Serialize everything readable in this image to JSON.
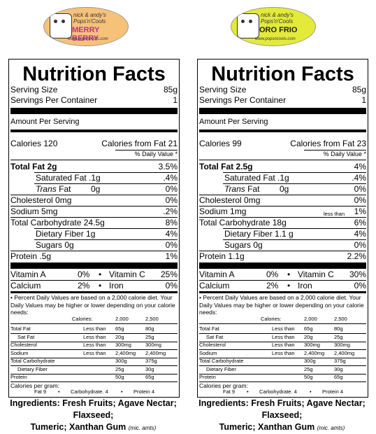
{
  "labels": [
    {
      "brand_line1": "nick & andy's",
      "brand_line2": "Pops'n'Cools",
      "flavor": "MERRY BERRY",
      "flavor_color": "#c03090",
      "logo_bg": "#f6c27a",
      "url": "www.popsncools.com",
      "title": "Nutrition Facts",
      "serving_size_label": "Serving Size",
      "serving_size_value": "85g",
      "servings_label": "Servings Per Container",
      "servings_value": "1",
      "amount_per_serving": "Amount Per Serving",
      "calories": "Calories 120",
      "calories_from_fat": "Calories from Fat 21",
      "dv_header": "% Daily Value *",
      "total_fat": "Total Fat 2g",
      "total_fat_dv": "3.5%",
      "sat_fat": "Saturated Fat .1g",
      "sat_fat_dv": ".4%",
      "trans_fat_label": "Trans",
      "trans_fat_rest": "Fat",
      "trans_fat_amt": "0g",
      "trans_fat_dv": "0%",
      "cholesterol": "Cholesterol 0mg",
      "cholesterol_dv": "0%",
      "sodium": "Sodium 5mg",
      "sodium_note": "",
      "sodium_dv": ".2%",
      "total_carb": "Total Carbohydrate 24.5g",
      "total_carb_dv": "8%",
      "fiber": "Dietary Fiber 1g",
      "fiber_dv": "4%",
      "sugars": "Sugars 0g",
      "sugars_dv": "0%",
      "protein": "Protein .5g",
      "protein_dv": "1%",
      "vit_a": "Vitamin A",
      "vit_a_dv": "0%",
      "vit_c": "Vitamin C",
      "vit_c_dv": "25%",
      "calcium": "Calcium",
      "calcium_dv": "2%",
      "iron": "Iron",
      "iron_dv": "0%"
    },
    {
      "brand_line1": "nick & andy's",
      "brand_line2": "Pops'n'Cools",
      "flavor": "ORO FRIO",
      "flavor_color": "#222222",
      "logo_bg": "#e3ea3a",
      "url": "www.popsncools.com",
      "title": "Nutrition Facts",
      "serving_size_label": "Serving Size",
      "serving_size_value": "85g",
      "servings_label": "Servings Per Container",
      "servings_value": "1",
      "amount_per_serving": "Amount Per Serving",
      "calories": "Calories 99",
      "calories_from_fat": "Calories from Fat 23",
      "dv_header": "% Daily Value *",
      "total_fat": "Total Fat 2.5g",
      "total_fat_dv": "4%",
      "sat_fat": "Saturated Fat .1g",
      "sat_fat_dv": ".4%",
      "trans_fat_label": "Trans",
      "trans_fat_rest": "Fat",
      "trans_fat_amt": "0g",
      "trans_fat_dv": "0%",
      "cholesterol": "Cholesterol 0mg",
      "cholesterol_dv": "0%",
      "sodium": "Sodium 1mg",
      "sodium_note": "less than",
      "sodium_dv": "1%",
      "total_carb": "Total Carbohydrate 18g",
      "total_carb_dv": "6%",
      "fiber": "Dietary Fiber 1.1 g",
      "fiber_dv": "4%",
      "sugars": "Sugars 0g",
      "sugars_dv": "0%",
      "protein": "Protein 1.1g",
      "protein_dv": "2.2%",
      "vit_a": "Vitamin A",
      "vit_a_dv": "0%",
      "vit_c": "Vitamin C",
      "vit_c_dv": "30%",
      "calcium": "Calcium",
      "calcium_dv": "2%",
      "iron": "Iron",
      "iron_dv": "0%"
    }
  ],
  "footnote": "• Percent Daily Values are based on a 2,000 calorie diet.  Your Daily Values may be higher or lower depending on your calorie needs:",
  "dv_table": {
    "header": [
      "Calories:",
      "2,000",
      "2,500"
    ],
    "rows": [
      [
        "Total Fat",
        "Less than",
        "65g",
        "80g"
      ],
      [
        "Sat Fat",
        "Less than",
        "20g",
        "25g"
      ],
      [
        "Cholesterol",
        "Less than",
        "300mg",
        "300mg"
      ],
      [
        "Sodium",
        "Less than",
        "2,400mg",
        "2,400mg"
      ],
      [
        "Total Carbohydrate",
        "",
        "300g",
        "375g"
      ],
      [
        "Dietary Fiber",
        "",
        "25g",
        "30g"
      ],
      [
        "Protein",
        "",
        "50g",
        "65g"
      ]
    ]
  },
  "calories_per_gram_label": "Calories per gram:",
  "calories_per_gram": [
    "Fat 9",
    "•",
    "Carbohydrate. 4",
    "•",
    "Protein 4"
  ],
  "ingredients_line1": "Ingredients: Fresh Fruits; Agave Nectar; Flaxseed;",
  "ingredients_line2": "Tumeric; Xanthan Gum",
  "ingredients_small": "(mic. amts)"
}
